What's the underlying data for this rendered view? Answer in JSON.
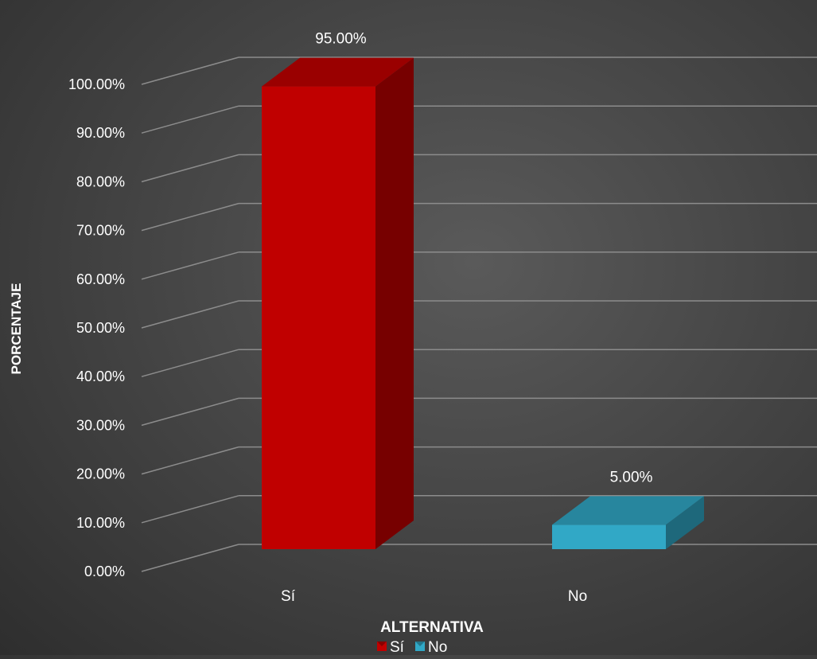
{
  "chart_data": {
    "type": "bar",
    "categories": [
      "Sí",
      "No"
    ],
    "values": [
      95.0,
      5.0
    ],
    "data_labels": [
      "95.00%",
      "5.00%"
    ],
    "series": [
      {
        "name": "Sí",
        "values": [
          95.0,
          null
        ],
        "color": "#c00000"
      },
      {
        "name": "No",
        "values": [
          null,
          5.0
        ],
        "color": "#31a8c6"
      }
    ],
    "y_ticks": [
      0,
      10,
      20,
      30,
      40,
      50,
      60,
      70,
      80,
      90,
      100
    ],
    "y_tick_labels": [
      "0.00%",
      "10.00%",
      "20.00%",
      "30.00%",
      "40.00%",
      "50.00%",
      "60.00%",
      "70.00%",
      "80.00%",
      "90.00%",
      "100.00%"
    ],
    "ylim": [
      0,
      100
    ],
    "xlabel": "ALTERNATIVA",
    "ylabel": "PORCENTAJE",
    "grid": true,
    "legend_position": "bottom",
    "style": "3d"
  }
}
